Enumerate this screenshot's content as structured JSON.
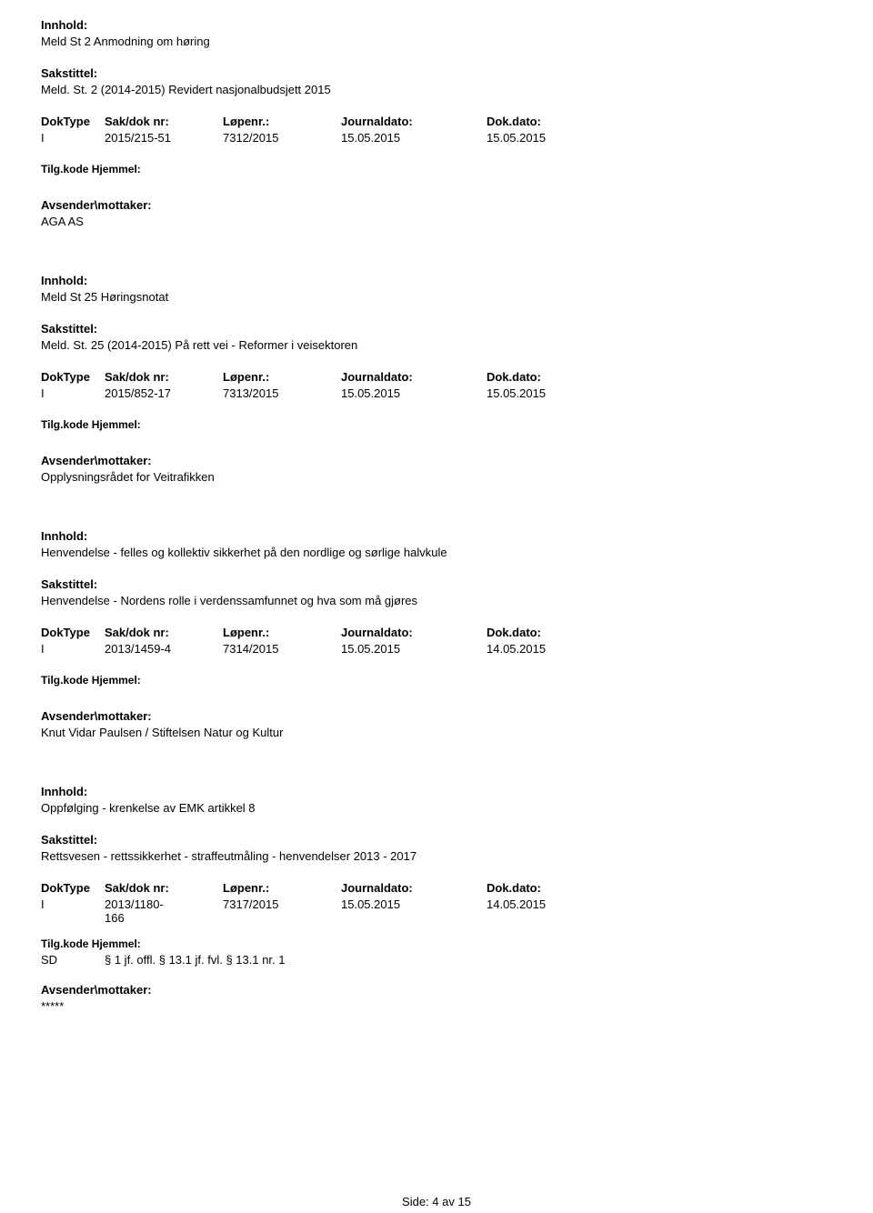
{
  "labels": {
    "innhold": "Innhold:",
    "sakstittel": "Sakstittel:",
    "doktype": "DokType",
    "saknr": "Sak/dok nr:",
    "lopenr": "Løpenr.:",
    "journaldato": "Journaldato:",
    "dokdato": "Dok.dato:",
    "tilgkode": "Tilg.kode",
    "hjemmel": "Hjemmel:",
    "tilgkode_hjemmel": "Tilg.kode Hjemmel:",
    "avsender": "Avsender\\mottaker:"
  },
  "entries": [
    {
      "innhold": "Meld St 2 Anmodning om høring",
      "sakstittel": "Meld. St. 2 (2014-2015) Revidert nasjonalbudsjett 2015",
      "doktype": "I",
      "saknr": "2015/215-51",
      "lopenr": "7312/2015",
      "journaldato": "15.05.2015",
      "dokdato": "15.05.2015",
      "tilgkode": "",
      "hjemmel": "",
      "avsender": "AGA AS"
    },
    {
      "innhold": "Meld St 25 Høringsnotat",
      "sakstittel": "Meld. St. 25 (2014-2015) På rett vei - Reformer i veisektoren",
      "doktype": "I",
      "saknr": "2015/852-17",
      "lopenr": "7313/2015",
      "journaldato": "15.05.2015",
      "dokdato": "15.05.2015",
      "tilgkode": "",
      "hjemmel": "",
      "avsender": "Opplysningsrådet for Veitrafikken"
    },
    {
      "innhold": "Henvendelse - felles og kollektiv sikkerhet på den nordlige og sørlige halvkule",
      "sakstittel": "Henvendelse - Nordens rolle i verdenssamfunnet og hva som må gjøres",
      "doktype": "I",
      "saknr": "2013/1459-4",
      "lopenr": "7314/2015",
      "journaldato": "15.05.2015",
      "dokdato": "14.05.2015",
      "tilgkode": "",
      "hjemmel": "",
      "avsender": "Knut Vidar Paulsen / Stiftelsen Natur og Kultur"
    },
    {
      "innhold": "Oppfølging - krenkelse av EMK artikkel 8",
      "sakstittel": "Rettsvesen - rettssikkerhet - straffeutmåling - henvendelser 2013 - 2017",
      "doktype": "I",
      "saknr": "2013/1180-",
      "saknr_line2": "166",
      "lopenr": "7317/2015",
      "journaldato": "15.05.2015",
      "dokdato": "14.05.2015",
      "tilgkode": "SD",
      "hjemmel": "§ 1 jf. offl. § 13.1 jf. fvl. § 13.1 nr. 1",
      "avsender": "*****"
    }
  ],
  "footer": {
    "text": "Side: 4 av 15"
  }
}
